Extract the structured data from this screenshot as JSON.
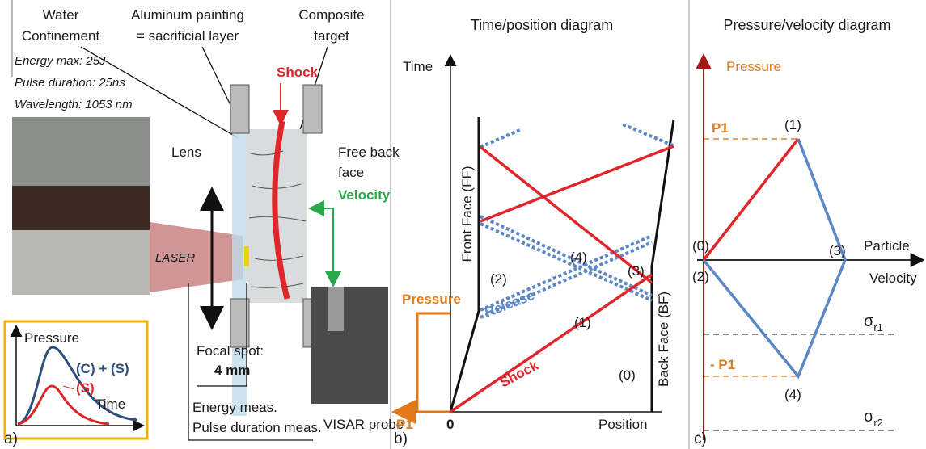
{
  "panel_a": {
    "water_confinement": [
      "Water",
      "Confinement"
    ],
    "aluminum": [
      "Aluminum painting",
      "= sacrificial layer"
    ],
    "composite": [
      "Composite",
      "target"
    ],
    "shock": "Shock",
    "laser_specs": [
      "Energy max: 25J",
      "Pulse duration: 25ns",
      "Wavelength: 1053 nm"
    ],
    "lens": "Lens",
    "laser": "LASER",
    "free_back_face": [
      "Free back",
      "face"
    ],
    "velocity": "Velocity",
    "focal_spot": [
      "Focal spot:",
      "4 mm"
    ],
    "visar": "VISAR probe",
    "measurements": [
      "Energy meas.",
      "Pulse duration meas."
    ],
    "inset": {
      "pressure": "Pressure",
      "combined": "(C) + (S)",
      "single": "(S)",
      "time": "Time"
    },
    "tag": "a)"
  },
  "panel_b": {
    "title": "Time/position diagram",
    "time": "Time",
    "position": "Position",
    "front_face": "Front Face (FF)",
    "back_face": "Back Face (BF)",
    "pressure": "Pressure",
    "p1": "P1",
    "origin": "0",
    "shock": "Shock",
    "release": "Release",
    "states": [
      "(0)",
      "(1)",
      "(2)",
      "(3)",
      "(4)"
    ],
    "tag": "b)"
  },
  "panel_c": {
    "title": "Pressure/velocity diagram",
    "pressure": "Pressure",
    "p1": "P1",
    "neg_p1": "- P1",
    "particle": "Particle",
    "velocity": "Velocity",
    "states": [
      "(0)",
      "(1)",
      "(2)",
      "(3)",
      "(4)"
    ],
    "sigma_r1": {
      "symbol": "σ",
      "sub": "r1"
    },
    "sigma_r2": {
      "symbol": "σ",
      "sub": "r2"
    },
    "tag": "c)"
  }
}
